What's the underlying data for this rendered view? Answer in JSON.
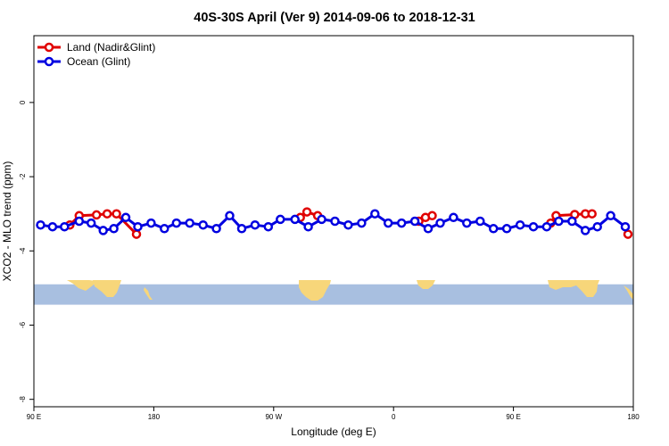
{
  "chart_data": {
    "type": "line",
    "title": "40S-30S April (Ver 9)   2014-09-06 to 2018-12-31",
    "xlabel": "Longitude (deg E)",
    "ylabel": "XCO2 - MLO trend (ppm)",
    "xlim": [
      90,
      540
    ],
    "ylim": [
      -8.2,
      1.8
    ],
    "x_ticks": [
      {
        "value": 90,
        "label": "90 E"
      },
      {
        "value": 180,
        "label": "180"
      },
      {
        "value": 270,
        "label": "90 W"
      },
      {
        "value": 360,
        "label": "0"
      },
      {
        "value": 450,
        "label": "90 E"
      },
      {
        "value": 540,
        "label": "180"
      }
    ],
    "y_ticks": [
      {
        "value": 0,
        "label": "0"
      },
      {
        "value": -2,
        "label": "-2"
      },
      {
        "value": -4,
        "label": "-4"
      },
      {
        "value": -6,
        "label": "-6"
      },
      {
        "value": -8,
        "label": "-8"
      }
    ],
    "grid": false,
    "legend_position": "top-left",
    "map_strip": {
      "y_top": -4.9,
      "y_bottom": -5.45,
      "ocean_color": "#a8bfe0",
      "land_color": "#f7d67a"
    },
    "series": [
      {
        "name": "Land (Nadir&Glint)",
        "color": "#e00000",
        "segments": [
          [
            [
              117,
              -3.3
            ],
            [
              124,
              -3.05
            ],
            [
              137,
              -3.03
            ],
            [
              145,
              -3.0
            ],
            [
              152,
              -3.0
            ],
            [
              167,
              -3.55
            ]
          ],
          [
            [
              290,
              -3.1
            ],
            [
              295,
              -2.95
            ],
            [
              303,
              -3.05
            ]
          ],
          [
            [
              379,
              -3.2
            ],
            [
              384,
              -3.1
            ],
            [
              389,
              -3.05
            ]
          ],
          [
            [
              478,
              -3.25
            ],
            [
              482,
              -3.05
            ],
            [
              496,
              -3.02
            ],
            [
              504,
              -3.0
            ],
            [
              509,
              -3.0
            ]
          ],
          [
            [
              536,
              -3.55
            ]
          ]
        ]
      },
      {
        "name": "Ocean (Glint)",
        "color": "#0000e0",
        "segments": [
          [
            [
              95,
              -3.3
            ],
            [
              104,
              -3.35
            ],
            [
              113,
              -3.35
            ],
            [
              124,
              -3.2
            ],
            [
              133,
              -3.25
            ],
            [
              142,
              -3.45
            ],
            [
              150,
              -3.4
            ],
            [
              159,
              -3.1
            ],
            [
              168,
              -3.35
            ],
            [
              178,
              -3.25
            ],
            [
              188,
              -3.4
            ],
            [
              197,
              -3.25
            ],
            [
              207,
              -3.25
            ],
            [
              217,
              -3.3
            ],
            [
              227,
              -3.4
            ],
            [
              237,
              -3.05
            ],
            [
              246,
              -3.4
            ],
            [
              256,
              -3.3
            ],
            [
              266,
              -3.35
            ],
            [
              275,
              -3.15
            ],
            [
              286,
              -3.15
            ],
            [
              296,
              -3.35
            ],
            [
              306,
              -3.15
            ],
            [
              316,
              -3.2
            ],
            [
              326,
              -3.3
            ],
            [
              336,
              -3.25
            ],
            [
              346,
              -3.0
            ],
            [
              356,
              -3.25
            ],
            [
              366,
              -3.25
            ],
            [
              376,
              -3.2
            ],
            [
              386,
              -3.4
            ],
            [
              395,
              -3.25
            ],
            [
              405,
              -3.1
            ],
            [
              415,
              -3.25
            ],
            [
              425,
              -3.2
            ],
            [
              435,
              -3.4
            ],
            [
              445,
              -3.4
            ],
            [
              455,
              -3.3
            ],
            [
              465,
              -3.35
            ],
            [
              475,
              -3.35
            ],
            [
              484,
              -3.2
            ],
            [
              494,
              -3.2
            ],
            [
              504,
              -3.45
            ],
            [
              513,
              -3.35
            ],
            [
              523,
              -3.05
            ],
            [
              534,
              -3.35
            ]
          ]
        ]
      }
    ]
  }
}
